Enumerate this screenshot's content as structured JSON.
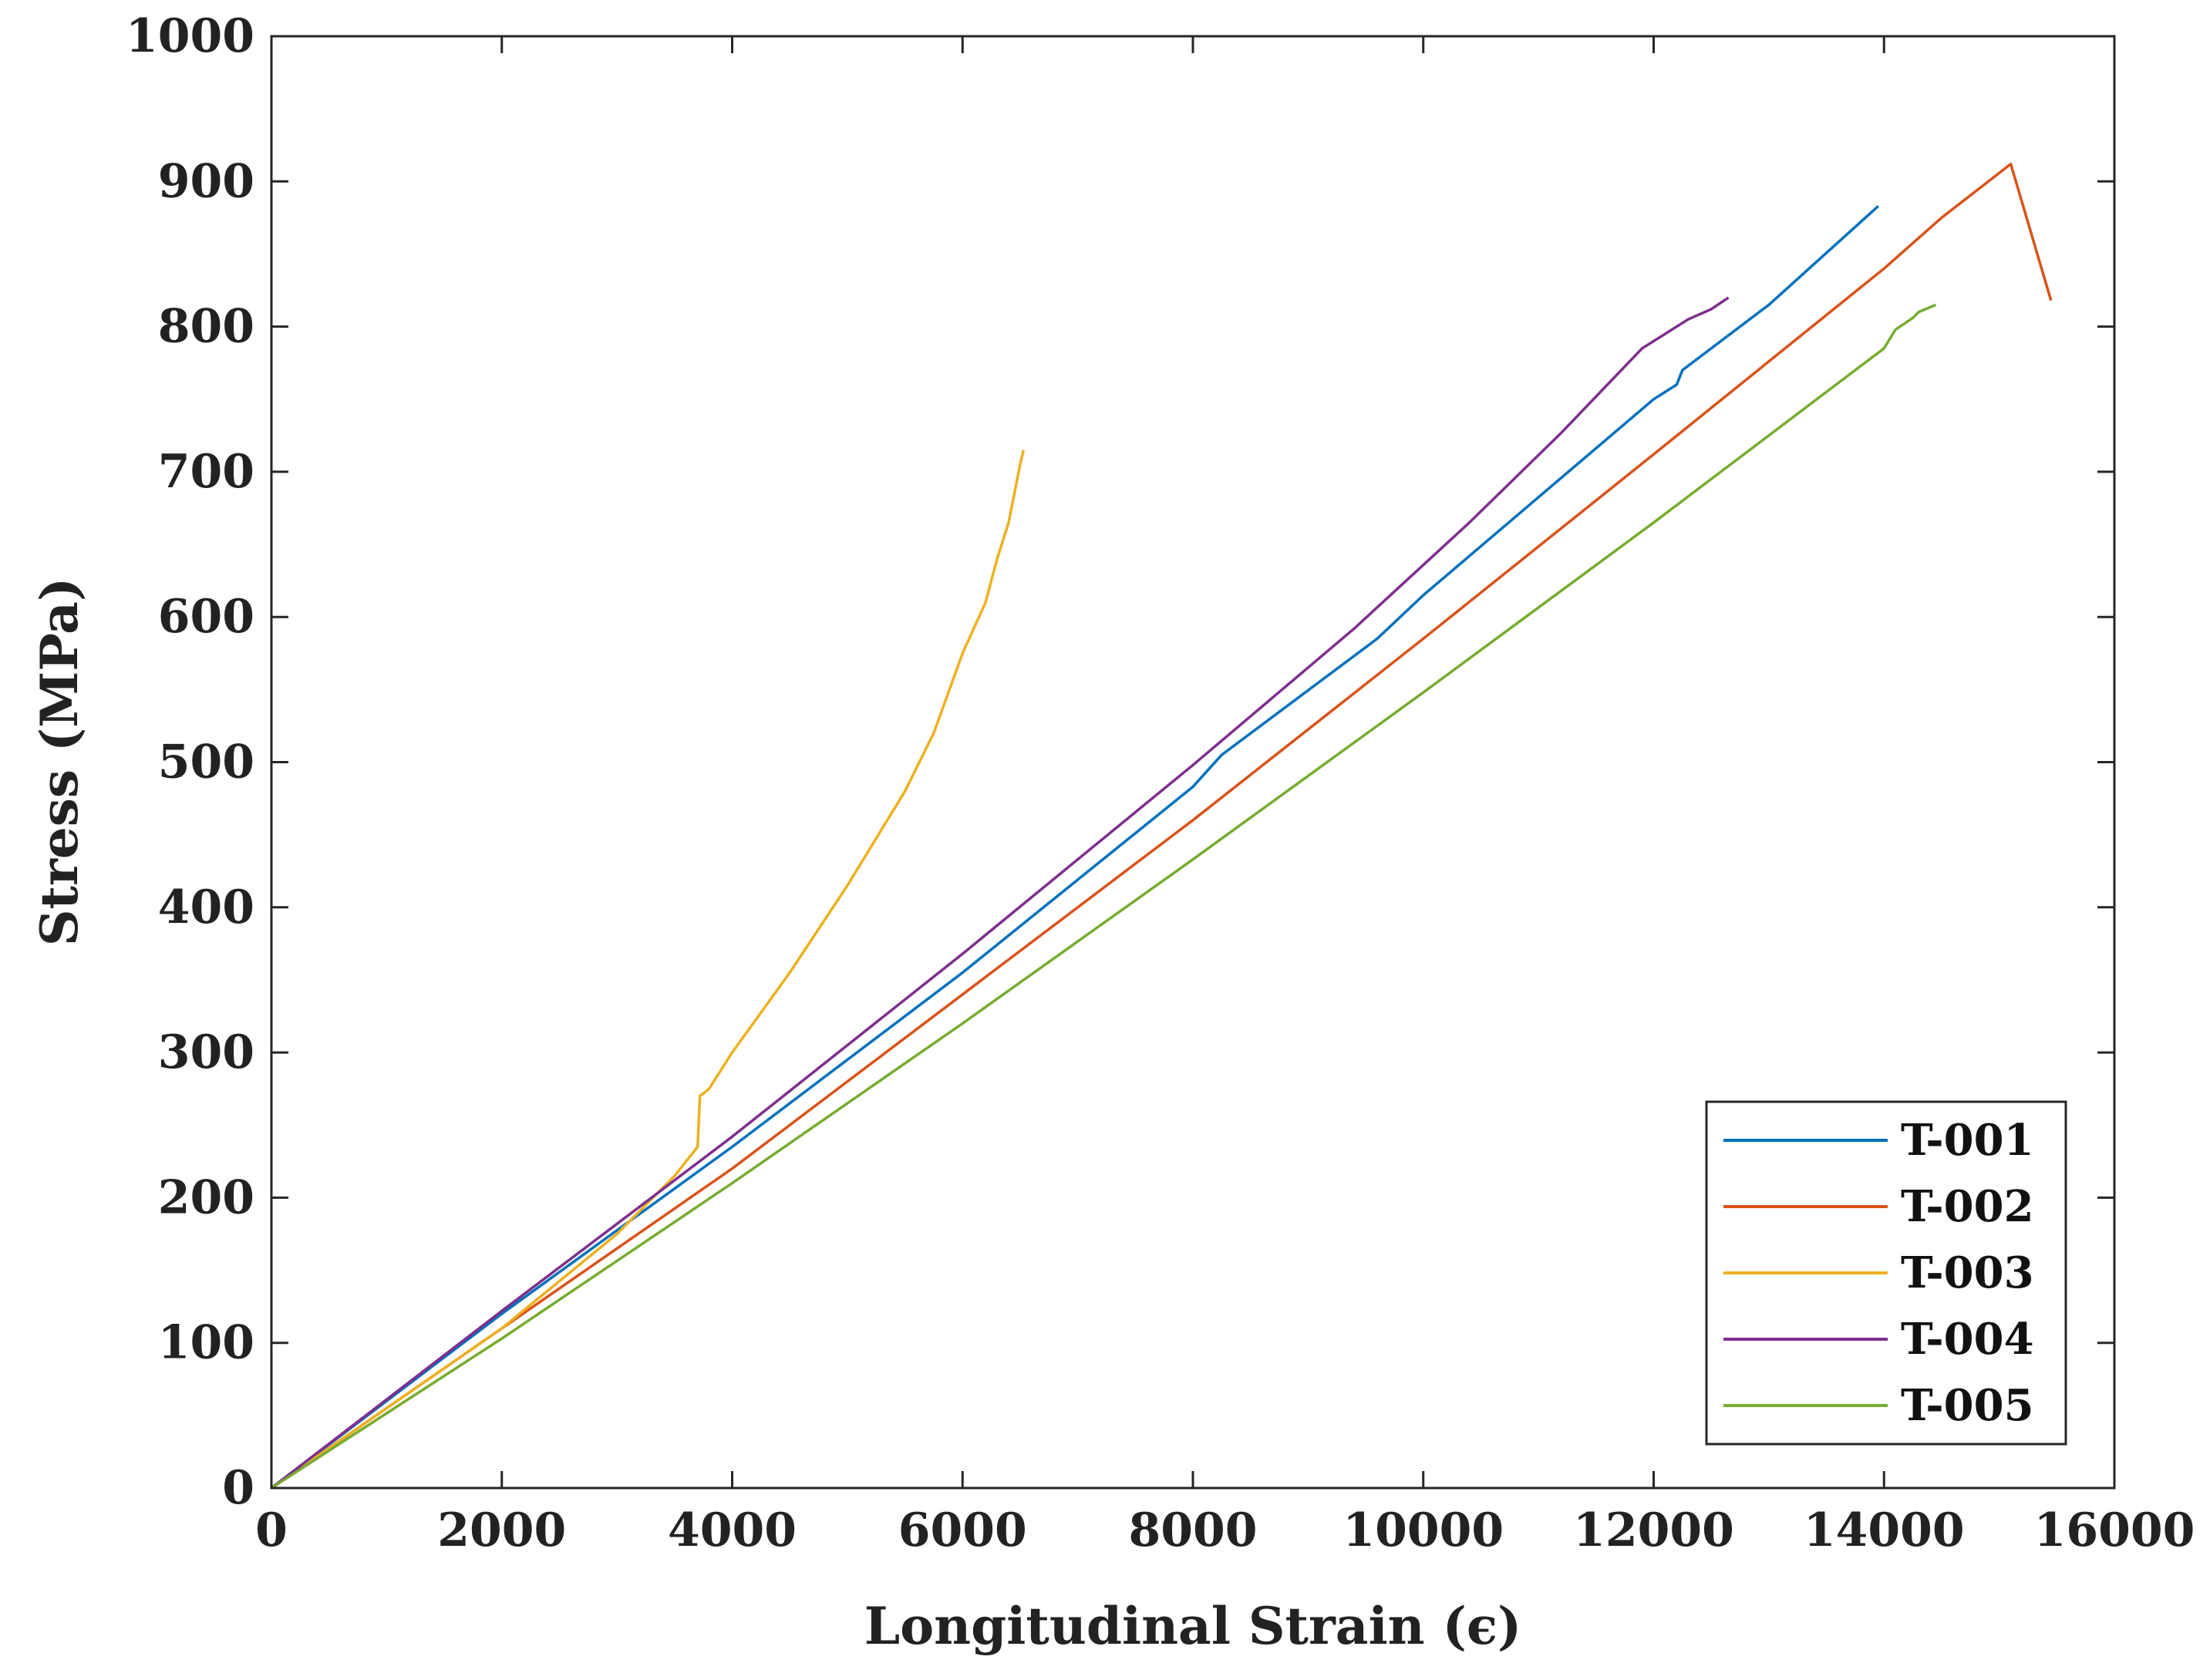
{
  "chart_data": {
    "type": "line",
    "xlabel": "Longitudinal Strain (ϵ)",
    "ylabel": "Stress (MPa)",
    "xlim": [
      0,
      16000
    ],
    "ylim": [
      0,
      1000
    ],
    "x_ticks": [
      "0",
      "2000",
      "4000",
      "6000",
      "8000",
      "10000",
      "12000",
      "14000",
      "16000"
    ],
    "y_ticks": [
      "0",
      "100",
      "200",
      "300",
      "400",
      "500",
      "600",
      "700",
      "800",
      "900",
      "1000"
    ],
    "grid": false,
    "legend_position": "bottom-right",
    "series": [
      {
        "name": "T-001",
        "color": "#0072BD",
        "x": [
          0,
          2000,
          4000,
          6000,
          8000,
          8250,
          9600,
          10000,
          12000,
          12200,
          12250,
          13000,
          13950
        ],
        "y": [
          0,
          120,
          235,
          355,
          483,
          505,
          585,
          615,
          750,
          760,
          770,
          815,
          883
        ]
      },
      {
        "name": "T-002",
        "color": "#D95319",
        "x": [
          0,
          2000,
          4000,
          6000,
          8000,
          10000,
          12000,
          14000,
          14500,
          15100,
          15450
        ],
        "y": [
          0,
          110,
          220,
          340,
          460,
          585,
          712,
          840,
          875,
          912,
          818
        ]
      },
      {
        "name": "T-003",
        "color": "#EDB120",
        "x": [
          0,
          1000,
          2000,
          3000,
          3500,
          3700,
          3720,
          3800,
          4000,
          4500,
          5000,
          5500,
          5750,
          6000,
          6200,
          6300,
          6400,
          6450,
          6500,
          6530
        ],
        "y": [
          0,
          55,
          110,
          175,
          215,
          235,
          270,
          275,
          300,
          355,
          415,
          480,
          520,
          575,
          610,
          640,
          665,
          685,
          705,
          715
        ]
      },
      {
        "name": "T-004",
        "color": "#7E2F8E",
        "x": [
          0,
          2000,
          4000,
          6000,
          8000,
          9400,
          10400,
          11200,
          11900,
          12300,
          12500,
          12650
        ],
        "y": [
          0,
          122,
          242,
          368,
          498,
          592,
          665,
          727,
          785,
          805,
          812,
          820
        ]
      },
      {
        "name": "T-005",
        "color": "#77AC30",
        "x": [
          0,
          2000,
          4000,
          6000,
          8000,
          10000,
          12000,
          14000,
          14100,
          14250,
          14300,
          14450
        ],
        "y": [
          0,
          103,
          210,
          320,
          433,
          548,
          665,
          785,
          798,
          806,
          810,
          815
        ]
      }
    ]
  }
}
